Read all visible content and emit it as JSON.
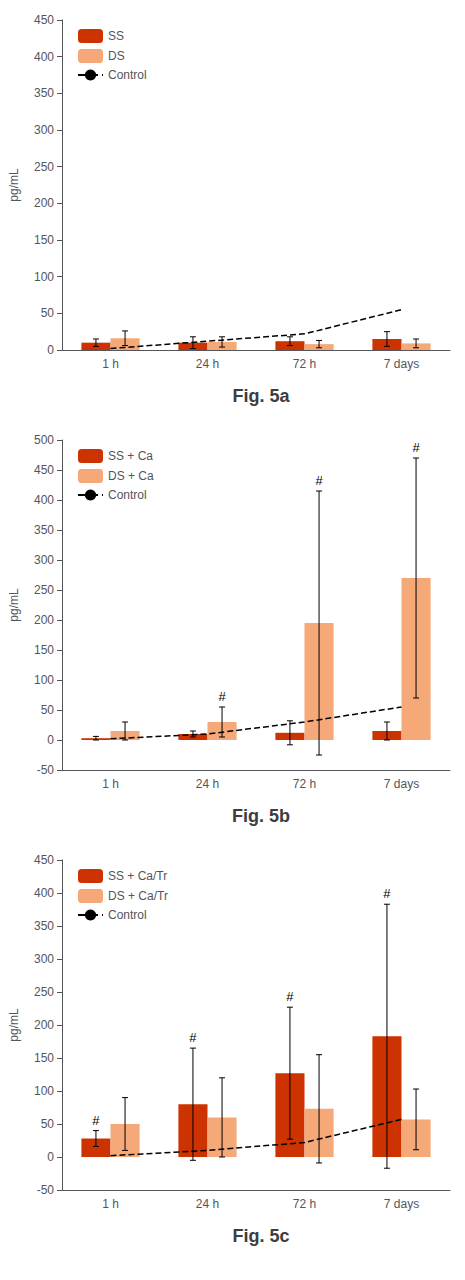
{
  "chart_data": [
    {
      "type": "bar",
      "title": "Fig. 5a",
      "ylabel": "pg/mL",
      "categories": [
        "1 h",
        "24 h",
        "72 h",
        "7 days"
      ],
      "series": [
        {
          "name": "SS",
          "color": "#cc3300",
          "values": [
            10,
            10,
            12,
            15
          ],
          "errors": [
            5,
            8,
            6,
            10
          ]
        },
        {
          "name": "DS",
          "color": "#f5a878",
          "values": [
            16,
            11,
            8,
            9
          ],
          "errors": [
            10,
            7,
            5,
            6
          ]
        },
        {
          "name": "Control",
          "type": "line",
          "color": "#000000",
          "line_style": "dashed",
          "values": [
            2,
            12,
            22,
            55
          ]
        }
      ],
      "annotations": [],
      "ylim": [
        0,
        450
      ],
      "yticks": [
        0,
        50,
        100,
        150,
        200,
        250,
        300,
        350,
        400,
        450
      ],
      "grid": false,
      "legend": "upper left"
    },
    {
      "type": "bar",
      "title": "Fig. 5b",
      "ylabel": "pg/mL",
      "categories": [
        "1 h",
        "24 h",
        "72 h",
        "7 days"
      ],
      "series": [
        {
          "name": "SS + Ca",
          "color": "#cc3300",
          "values": [
            3,
            10,
            12,
            15
          ],
          "errors": [
            3,
            5,
            20,
            15
          ]
        },
        {
          "name": "DS + Ca",
          "color": "#f5a878",
          "values": [
            15,
            30,
            195,
            270
          ],
          "errors": [
            15,
            25,
            220,
            200
          ]
        },
        {
          "name": "Control",
          "type": "line",
          "color": "#000000",
          "line_style": "dashed",
          "values": [
            2,
            10,
            30,
            55
          ]
        }
      ],
      "annotations": [
        {
          "text": "#",
          "series": "DS + Ca",
          "category": "24 h"
        },
        {
          "text": "#",
          "series": "DS + Ca",
          "category": "72 h"
        },
        {
          "text": "#",
          "series": "DS + Ca",
          "category": "7 days"
        }
      ],
      "ylim": [
        -50,
        500
      ],
      "yticks": [
        -50,
        0,
        50,
        100,
        150,
        200,
        250,
        300,
        350,
        400,
        450,
        500
      ],
      "grid": false,
      "legend": "upper left"
    },
    {
      "type": "bar",
      "title": "Fig. 5c",
      "ylabel": "pg/mL",
      "categories": [
        "1 h",
        "24 h",
        "72 h",
        "7 days"
      ],
      "series": [
        {
          "name": "SS + Ca/Tr",
          "color": "#cc3300",
          "values": [
            28,
            80,
            127,
            183
          ],
          "errors": [
            12,
            85,
            100,
            200
          ]
        },
        {
          "name": "DS + Ca/Tr",
          "color": "#f5a878",
          "values": [
            50,
            60,
            73,
            57
          ],
          "errors": [
            40,
            60,
            82,
            46
          ]
        },
        {
          "name": "Control",
          "type": "line",
          "color": "#000000",
          "line_style": "dashed",
          "values": [
            2,
            10,
            22,
            57
          ]
        }
      ],
      "annotations": [
        {
          "text": "#",
          "series": "SS + Ca/Tr",
          "category": "1 h"
        },
        {
          "text": "#",
          "series": "SS + Ca/Tr",
          "category": "24 h"
        },
        {
          "text": "#",
          "series": "SS + Ca/Tr",
          "category": "72 h"
        },
        {
          "text": "#",
          "series": "SS + Ca/Tr",
          "category": "7 days"
        }
      ],
      "ylim": [
        -50,
        450
      ],
      "yticks": [
        -50,
        0,
        50,
        100,
        150,
        200,
        250,
        300,
        350,
        400,
        450
      ],
      "grid": false,
      "legend": "upper left"
    }
  ]
}
